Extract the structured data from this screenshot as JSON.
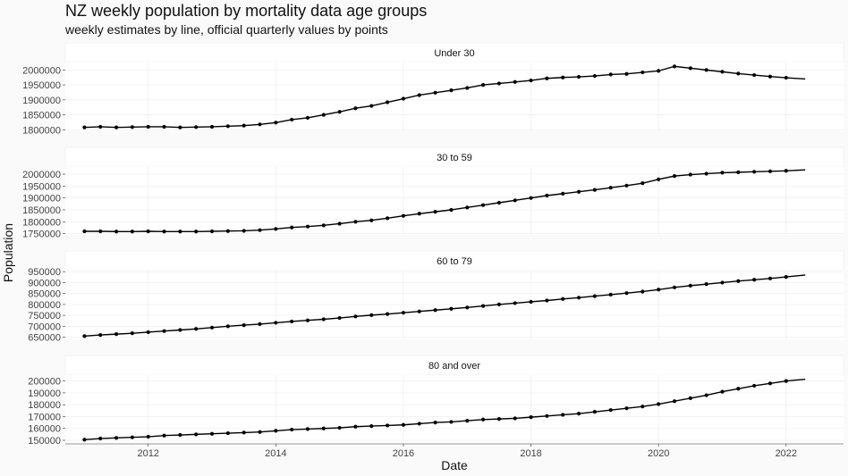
{
  "chart_data": {
    "type": "line",
    "title": "NZ weekly population by mortality data age groups",
    "subtitle": "weekly estimates by line, official quarterly values by points",
    "xlabel": "Date",
    "ylabel": "Population",
    "xlim": [
      2010.7,
      2022.9
    ],
    "x_ticks": [
      2012,
      2014,
      2016,
      2018,
      2020,
      2022
    ],
    "x_tick_labels": [
      "2012",
      "2014",
      "2016",
      "2018",
      "2020",
      "2022"
    ],
    "grid": true,
    "colors": {
      "line": "#000000",
      "background": "#fafafa",
      "panel": "#ffffff",
      "strip": "#ffffff"
    },
    "panels": [
      {
        "name": "Under 30",
        "ylim": [
          1795000,
          2025000
        ],
        "y_ticks": [
          1800000,
          1850000,
          1900000,
          1950000,
          2000000
        ],
        "y_tick_labels": [
          "1800000",
          "1850000",
          "1900000",
          "1950000",
          "2000000"
        ],
        "line_x": [
          2011.0,
          2011.25,
          2011.5,
          2011.75,
          2012.0,
          2012.25,
          2012.5,
          2012.75,
          2013.0,
          2013.25,
          2013.5,
          2013.75,
          2014.0,
          2014.25,
          2014.5,
          2014.75,
          2015.0,
          2015.25,
          2015.5,
          2015.75,
          2016.0,
          2016.25,
          2016.5,
          2016.75,
          2017.0,
          2017.25,
          2017.5,
          2017.75,
          2018.0,
          2018.25,
          2018.5,
          2018.75,
          2019.0,
          2019.25,
          2019.5,
          2019.75,
          2020.0,
          2020.25,
          2020.5,
          2020.75,
          2021.0,
          2021.25,
          2021.5,
          2021.75,
          2022.0,
          2022.3
        ],
        "line_y": [
          1808000,
          1810000,
          1808000,
          1809000,
          1810000,
          1810000,
          1808000,
          1809000,
          1810000,
          1812000,
          1814000,
          1818000,
          1824000,
          1834000,
          1840000,
          1850000,
          1860000,
          1872000,
          1880000,
          1892000,
          1904000,
          1916000,
          1924000,
          1932000,
          1940000,
          1950000,
          1955000,
          1960000,
          1965000,
          1972000,
          1975000,
          1977000,
          1980000,
          1985000,
          1987000,
          1992000,
          1997000,
          2012000,
          2006000,
          2000000,
          1994000,
          1988000,
          1983000,
          1978000,
          1974000,
          1970000
        ],
        "points_x": [
          2011.0,
          2011.25,
          2011.5,
          2011.75,
          2012.0,
          2012.25,
          2012.5,
          2012.75,
          2013.0,
          2013.25,
          2013.5,
          2013.75,
          2014.0,
          2014.25,
          2014.5,
          2014.75,
          2015.0,
          2015.25,
          2015.5,
          2015.75,
          2016.0,
          2016.25,
          2016.5,
          2016.75,
          2017.0,
          2017.25,
          2017.5,
          2017.75,
          2018.0,
          2018.25,
          2018.5,
          2018.75,
          2019.0,
          2019.25,
          2019.5,
          2019.75,
          2020.0,
          2020.25,
          2020.5,
          2020.75,
          2021.0,
          2021.25,
          2021.5,
          2021.75,
          2022.0
        ],
        "points_y": [
          1808000,
          1810000,
          1808000,
          1809000,
          1810000,
          1810000,
          1808000,
          1809000,
          1810000,
          1812000,
          1814000,
          1818000,
          1824000,
          1834000,
          1840000,
          1850000,
          1860000,
          1872000,
          1880000,
          1892000,
          1904000,
          1916000,
          1924000,
          1932000,
          1940000,
          1950000,
          1955000,
          1960000,
          1965000,
          1972000,
          1975000,
          1977000,
          1980000,
          1985000,
          1987000,
          1992000,
          1997000,
          2012000,
          2006000,
          2000000,
          1994000,
          1988000,
          1983000,
          1978000,
          1974000
        ]
      },
      {
        "name": "30 to 59",
        "ylim": [
          1745000,
          2030000
        ],
        "y_ticks": [
          1750000,
          1800000,
          1850000,
          1900000,
          1950000,
          2000000
        ],
        "y_tick_labels": [
          "1750000",
          "1800000",
          "1850000",
          "1900000",
          "1950000",
          "2000000"
        ],
        "line_x": [
          2011.0,
          2011.25,
          2011.5,
          2011.75,
          2012.0,
          2012.25,
          2012.5,
          2012.75,
          2013.0,
          2013.25,
          2013.5,
          2013.75,
          2014.0,
          2014.25,
          2014.5,
          2014.75,
          2015.0,
          2015.25,
          2015.5,
          2015.75,
          2016.0,
          2016.25,
          2016.5,
          2016.75,
          2017.0,
          2017.25,
          2017.5,
          2017.75,
          2018.0,
          2018.25,
          2018.5,
          2018.75,
          2019.0,
          2019.25,
          2019.5,
          2019.75,
          2020.0,
          2020.25,
          2020.5,
          2020.75,
          2021.0,
          2021.25,
          2021.5,
          2021.75,
          2022.0,
          2022.3
        ],
        "line_y": [
          1760000,
          1760000,
          1759000,
          1759000,
          1760000,
          1759000,
          1759000,
          1759000,
          1760000,
          1761000,
          1762000,
          1765000,
          1770000,
          1776000,
          1780000,
          1785000,
          1792000,
          1800000,
          1806000,
          1815000,
          1825000,
          1834000,
          1842000,
          1850000,
          1860000,
          1870000,
          1880000,
          1890000,
          1900000,
          1910000,
          1918000,
          1926000,
          1934000,
          1943000,
          1952000,
          1962000,
          1978000,
          1992000,
          1998000,
          2002000,
          2006000,
          2008000,
          2010000,
          2012000,
          2014000,
          2018000
        ],
        "points_x": [
          2011.0,
          2011.25,
          2011.5,
          2011.75,
          2012.0,
          2012.25,
          2012.5,
          2012.75,
          2013.0,
          2013.25,
          2013.5,
          2013.75,
          2014.0,
          2014.25,
          2014.5,
          2014.75,
          2015.0,
          2015.25,
          2015.5,
          2015.75,
          2016.0,
          2016.25,
          2016.5,
          2016.75,
          2017.0,
          2017.25,
          2017.5,
          2017.75,
          2018.0,
          2018.25,
          2018.5,
          2018.75,
          2019.0,
          2019.25,
          2019.5,
          2019.75,
          2020.0,
          2020.25,
          2020.5,
          2020.75,
          2021.0,
          2021.25,
          2021.5,
          2021.75,
          2022.0
        ],
        "points_y": [
          1760000,
          1760000,
          1759000,
          1759000,
          1760000,
          1759000,
          1759000,
          1759000,
          1760000,
          1761000,
          1762000,
          1765000,
          1770000,
          1776000,
          1780000,
          1785000,
          1792000,
          1800000,
          1806000,
          1815000,
          1825000,
          1834000,
          1842000,
          1850000,
          1860000,
          1870000,
          1880000,
          1890000,
          1900000,
          1910000,
          1918000,
          1926000,
          1934000,
          1943000,
          1952000,
          1962000,
          1978000,
          1992000,
          1998000,
          2002000,
          2006000,
          2008000,
          2010000,
          2012000,
          2014000
        ]
      },
      {
        "name": "60 to 79",
        "ylim": [
          640000,
          955000
        ],
        "y_ticks": [
          650000,
          700000,
          750000,
          800000,
          850000,
          900000,
          950000
        ],
        "y_tick_labels": [
          "650000",
          "700000",
          "750000",
          "800000",
          "850000",
          "900000",
          "950000"
        ],
        "line_x": [
          2011.0,
          2011.25,
          2011.5,
          2011.75,
          2012.0,
          2012.25,
          2012.5,
          2012.75,
          2013.0,
          2013.25,
          2013.5,
          2013.75,
          2014.0,
          2014.25,
          2014.5,
          2014.75,
          2015.0,
          2015.25,
          2015.5,
          2015.75,
          2016.0,
          2016.25,
          2016.5,
          2016.75,
          2017.0,
          2017.25,
          2017.5,
          2017.75,
          2018.0,
          2018.25,
          2018.5,
          2018.75,
          2019.0,
          2019.25,
          2019.5,
          2019.75,
          2020.0,
          2020.25,
          2020.5,
          2020.75,
          2021.0,
          2021.25,
          2021.5,
          2021.75,
          2022.0,
          2022.3
        ],
        "line_y": [
          655000,
          660000,
          664000,
          668000,
          673000,
          678000,
          683000,
          688000,
          694000,
          700000,
          705000,
          710000,
          716000,
          722000,
          727000,
          732000,
          738000,
          745000,
          751000,
          756000,
          762000,
          768000,
          774000,
          780000,
          786000,
          793000,
          800000,
          806000,
          812000,
          818000,
          825000,
          831000,
          838000,
          845000,
          852000,
          859000,
          868000,
          878000,
          886000,
          893000,
          900000,
          907000,
          913000,
          919000,
          926000,
          935000
        ],
        "points_x": [
          2011.0,
          2011.25,
          2011.5,
          2011.75,
          2012.0,
          2012.25,
          2012.5,
          2012.75,
          2013.0,
          2013.25,
          2013.5,
          2013.75,
          2014.0,
          2014.25,
          2014.5,
          2014.75,
          2015.0,
          2015.25,
          2015.5,
          2015.75,
          2016.0,
          2016.25,
          2016.5,
          2016.75,
          2017.0,
          2017.25,
          2017.5,
          2017.75,
          2018.0,
          2018.25,
          2018.5,
          2018.75,
          2019.0,
          2019.25,
          2019.5,
          2019.75,
          2020.0,
          2020.25,
          2020.5,
          2020.75,
          2021.0,
          2021.25,
          2021.5,
          2021.75,
          2022.0
        ],
        "points_y": [
          655000,
          660000,
          664000,
          668000,
          673000,
          678000,
          683000,
          688000,
          694000,
          700000,
          705000,
          710000,
          716000,
          722000,
          727000,
          732000,
          738000,
          745000,
          751000,
          756000,
          762000,
          768000,
          774000,
          780000,
          786000,
          793000,
          800000,
          806000,
          812000,
          818000,
          825000,
          831000,
          838000,
          845000,
          852000,
          859000,
          868000,
          878000,
          886000,
          893000,
          900000,
          907000,
          913000,
          919000,
          926000
        ]
      },
      {
        "name": "80 and over",
        "ylim": [
          147000,
          205000
        ],
        "y_ticks": [
          150000,
          160000,
          170000,
          180000,
          190000,
          200000
        ],
        "y_tick_labels": [
          "150000",
          "160000",
          "170000",
          "180000",
          "190000",
          "200000"
        ],
        "line_x": [
          2011.0,
          2011.25,
          2011.5,
          2011.75,
          2012.0,
          2012.25,
          2012.5,
          2012.75,
          2013.0,
          2013.25,
          2013.5,
          2013.75,
          2014.0,
          2014.25,
          2014.5,
          2014.75,
          2015.0,
          2015.25,
          2015.5,
          2015.75,
          2016.0,
          2016.25,
          2016.5,
          2016.75,
          2017.0,
          2017.25,
          2017.5,
          2017.75,
          2018.0,
          2018.25,
          2018.5,
          2018.75,
          2019.0,
          2019.25,
          2019.5,
          2019.75,
          2020.0,
          2020.25,
          2020.5,
          2020.75,
          2021.0,
          2021.25,
          2021.5,
          2021.75,
          2022.0,
          2022.3
        ],
        "line_y": [
          150500,
          151500,
          152000,
          152500,
          153000,
          154000,
          154500,
          155000,
          155500,
          156000,
          156500,
          157000,
          158000,
          159000,
          159500,
          160000,
          160500,
          161500,
          162000,
          162500,
          163000,
          164000,
          165000,
          165500,
          166500,
          167500,
          168000,
          168500,
          169500,
          170500,
          171500,
          172500,
          174000,
          175500,
          177000,
          178500,
          180500,
          183000,
          185500,
          188000,
          191000,
          193500,
          196000,
          198000,
          200000,
          201500
        ],
        "points_x": [
          2011.0,
          2011.25,
          2011.5,
          2011.75,
          2012.0,
          2012.25,
          2012.5,
          2012.75,
          2013.0,
          2013.25,
          2013.5,
          2013.75,
          2014.0,
          2014.25,
          2014.5,
          2014.75,
          2015.0,
          2015.25,
          2015.5,
          2015.75,
          2016.0,
          2016.25,
          2016.5,
          2016.75,
          2017.0,
          2017.25,
          2017.5,
          2017.75,
          2018.0,
          2018.25,
          2018.5,
          2018.75,
          2019.0,
          2019.25,
          2019.5,
          2019.75,
          2020.0,
          2020.25,
          2020.5,
          2020.75,
          2021.0,
          2021.25,
          2021.5,
          2021.75,
          2022.0
        ],
        "points_y": [
          150500,
          151500,
          152000,
          152500,
          153000,
          154000,
          154500,
          155000,
          155500,
          156000,
          156500,
          157000,
          158000,
          159000,
          159500,
          160000,
          160500,
          161500,
          162000,
          162500,
          163000,
          164000,
          165000,
          165500,
          166500,
          167500,
          168000,
          168500,
          169500,
          170500,
          171500,
          172500,
          174000,
          175500,
          177000,
          178500,
          180500,
          183000,
          185500,
          188000,
          191000,
          193500,
          196000,
          198000,
          200000
        ]
      }
    ]
  }
}
